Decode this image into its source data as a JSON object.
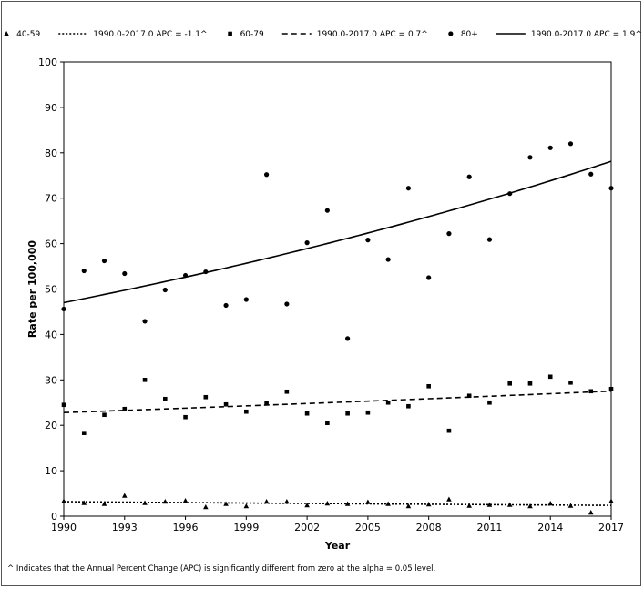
{
  "chart_data": {
    "type": "scatter",
    "xlabel": "Year",
    "ylabel": "Rate per 100,000",
    "xlim": [
      1990,
      2017
    ],
    "ylim": [
      0,
      100
    ],
    "x_ticks": [
      "1990",
      "1993",
      "1996",
      "1999",
      "2002",
      "2005",
      "2008",
      "2011",
      "2014",
      "2017"
    ],
    "y_ticks": [
      "0",
      "10",
      "20",
      "30",
      "40",
      "50",
      "60",
      "70",
      "80",
      "90",
      "100"
    ],
    "grid": false,
    "legend_position": "top",
    "legend": [
      {
        "label": "40-59",
        "kind": "marker",
        "marker": "triangle",
        "series": 0
      },
      {
        "label": "1990.0-2017.0 APC = -1.1^",
        "kind": "line",
        "dash": "2,2",
        "series": 0
      },
      {
        "label": "60-79",
        "kind": "marker",
        "marker": "square",
        "series": 1
      },
      {
        "label": "1990.0-2017.0 APC = 0.7^",
        "kind": "line",
        "dash": "6,4",
        "series": 1
      },
      {
        "label": "80+",
        "kind": "marker",
        "marker": "circle",
        "series": 2
      },
      {
        "label": "1990.0-2017.0 APC = 1.9^",
        "kind": "line",
        "dash": "none",
        "series": 2
      }
    ],
    "series": [
      {
        "name": "40-59",
        "marker": "triangle",
        "x": [
          1990,
          1991,
          1992,
          1993,
          1994,
          1995,
          1996,
          1997,
          1998,
          1999,
          2000,
          2001,
          2002,
          2003,
          2004,
          2005,
          2006,
          2007,
          2008,
          2009,
          2010,
          2011,
          2012,
          2013,
          2014,
          2015,
          2016,
          2017
        ],
        "values": [
          3.3,
          2.9,
          2.7,
          4.5,
          2.9,
          3.2,
          3.4,
          2.0,
          2.7,
          2.2,
          3.2,
          3.2,
          2.4,
          2.8,
          2.7,
          3.1,
          2.7,
          2.2,
          2.6,
          3.7,
          2.3,
          2.5,
          2.5,
          2.2,
          2.8,
          2.3,
          0.8,
          3.3
        ],
        "trend": {
          "label": "1990.0-2017.0 APC = -1.1^",
          "apc": -1.1,
          "start": 3.2,
          "dash": "2,2"
        }
      },
      {
        "name": "60-79",
        "marker": "square",
        "x": [
          1990,
          1991,
          1992,
          1993,
          1994,
          1995,
          1996,
          1997,
          1998,
          1999,
          2000,
          2001,
          2002,
          2003,
          2004,
          2005,
          2006,
          2007,
          2008,
          2009,
          2010,
          2011,
          2012,
          2013,
          2014,
          2015,
          2016,
          2017
        ],
        "values": [
          24.5,
          18.3,
          22.3,
          23.6,
          30.0,
          25.8,
          21.8,
          26.2,
          24.6,
          23.0,
          24.9,
          27.4,
          22.6,
          20.5,
          22.6,
          22.8,
          25.0,
          24.2,
          28.6,
          18.8,
          26.5,
          25.0,
          29.2,
          29.2,
          30.7,
          29.4,
          27.5,
          28.0
        ],
        "trend": {
          "label": "1990.0-2017.0 APC = 0.7^",
          "apc": 0.7,
          "start": 22.8,
          "dash": "6,4"
        }
      },
      {
        "name": "80+",
        "marker": "circle",
        "x": [
          1990,
          1991,
          1992,
          1993,
          1994,
          1995,
          1996,
          1997,
          1998,
          1999,
          2000,
          2001,
          2002,
          2003,
          2004,
          2005,
          2006,
          2007,
          2008,
          2009,
          2010,
          2011,
          2012,
          2013,
          2014,
          2015,
          2016,
          2017
        ],
        "values": [
          45.6,
          54.0,
          56.2,
          53.4,
          42.9,
          49.8,
          53.0,
          53.8,
          46.4,
          47.7,
          75.2,
          46.7,
          60.2,
          67.3,
          39.1,
          60.8,
          56.5,
          72.2,
          52.5,
          62.2,
          74.7,
          60.9,
          71.0,
          79.0,
          81.1,
          82.0,
          75.3,
          72.2
        ],
        "trend": {
          "label": "1990.0-2017.0 APC = 1.9^",
          "apc": 1.9,
          "start": 47.0,
          "dash": "none"
        }
      }
    ]
  },
  "footnote": "^ Indicates that the Annual Percent Change (APC) is significantly different from zero at the alpha = 0.05 level."
}
